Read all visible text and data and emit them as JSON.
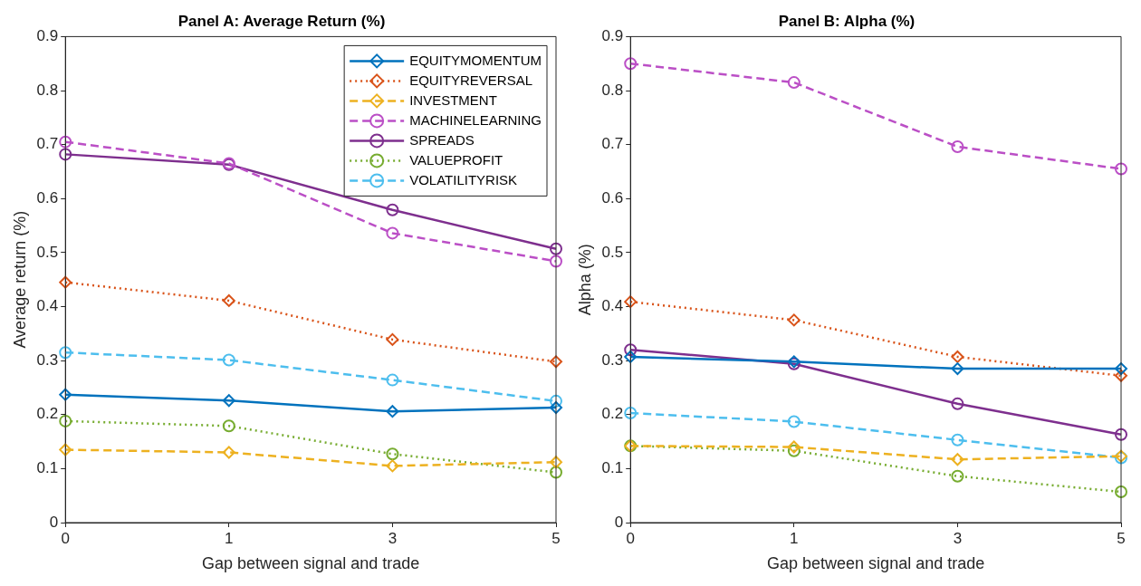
{
  "chart_data": [
    {
      "type": "line",
      "title": "Panel A: Average Return (%)",
      "xlabel": "Gap between signal and trade",
      "ylabel": "Average return (%)",
      "categories": [
        "0",
        "1",
        "3",
        "5"
      ],
      "ylim": [
        0,
        0.9
      ],
      "yticks": [
        0,
        0.1,
        0.2,
        0.3,
        0.4,
        0.5,
        0.6,
        0.7,
        0.8,
        0.9
      ],
      "grid": false,
      "legend": "top right",
      "series": [
        {
          "name": "EQUITYMOMENTUM",
          "color": "#0072bd",
          "marker": "diamond",
          "line_style": "solid",
          "values": [
            0.237,
            0.226,
            0.206,
            0.213
          ]
        },
        {
          "name": "EQUITYREVERSAL",
          "color": "#d95319",
          "marker": "diamond",
          "line_style": "dotted",
          "values": [
            0.445,
            0.411,
            0.339,
            0.298
          ]
        },
        {
          "name": "INVESTMENT",
          "color": "#edb120",
          "marker": "diamond",
          "line_style": "dashed",
          "values": [
            0.135,
            0.13,
            0.105,
            0.112
          ]
        },
        {
          "name": "MACHINELEARNING",
          "color": "#bb4fc6",
          "marker": "circle",
          "line_style": "dashed",
          "values": [
            0.705,
            0.665,
            0.536,
            0.484
          ]
        },
        {
          "name": "SPREADS",
          "color": "#7e2f8e",
          "marker": "circle",
          "line_style": "solid",
          "values": [
            0.682,
            0.663,
            0.579,
            0.507
          ]
        },
        {
          "name": "VALUEPROFIT",
          "color": "#77ac30",
          "marker": "circle",
          "line_style": "dotted",
          "values": [
            0.188,
            0.179,
            0.127,
            0.093
          ]
        },
        {
          "name": "VOLATILITYRISK",
          "color": "#4dbeee",
          "marker": "circle",
          "line_style": "dashed",
          "values": [
            0.315,
            0.301,
            0.264,
            0.225
          ]
        }
      ]
    },
    {
      "type": "line",
      "title": "Panel B: Alpha (%)",
      "xlabel": "Gap between signal and trade",
      "ylabel": "Alpha (%)",
      "categories": [
        "0",
        "1",
        "3",
        "5"
      ],
      "ylim": [
        0,
        0.9
      ],
      "yticks": [
        0,
        0.1,
        0.2,
        0.3,
        0.4,
        0.5,
        0.6,
        0.7,
        0.8,
        0.9
      ],
      "grid": false,
      "legend": false,
      "series": [
        {
          "color": "#0072bd",
          "marker": "diamond",
          "line_style": "solid",
          "values": [
            0.307,
            0.298,
            0.285,
            0.285
          ]
        },
        {
          "color": "#d95319",
          "marker": "diamond",
          "line_style": "dotted",
          "values": [
            0.409,
            0.375,
            0.307,
            0.272
          ]
        },
        {
          "color": "#edb120",
          "marker": "diamond",
          "line_style": "dashed",
          "values": [
            0.142,
            0.14,
            0.117,
            0.123
          ]
        },
        {
          "color": "#bb4fc6",
          "marker": "circle",
          "line_style": "dashed",
          "values": [
            0.85,
            0.815,
            0.696,
            0.655
          ]
        },
        {
          "color": "#7e2f8e",
          "marker": "circle",
          "line_style": "solid",
          "values": [
            0.32,
            0.294,
            0.22,
            0.163
          ]
        },
        {
          "color": "#77ac30",
          "marker": "circle",
          "line_style": "dotted",
          "values": [
            0.142,
            0.133,
            0.086,
            0.057
          ]
        },
        {
          "color": "#4dbeee",
          "marker": "circle",
          "line_style": "dashed",
          "values": [
            0.203,
            0.187,
            0.153,
            0.12
          ]
        }
      ]
    }
  ]
}
